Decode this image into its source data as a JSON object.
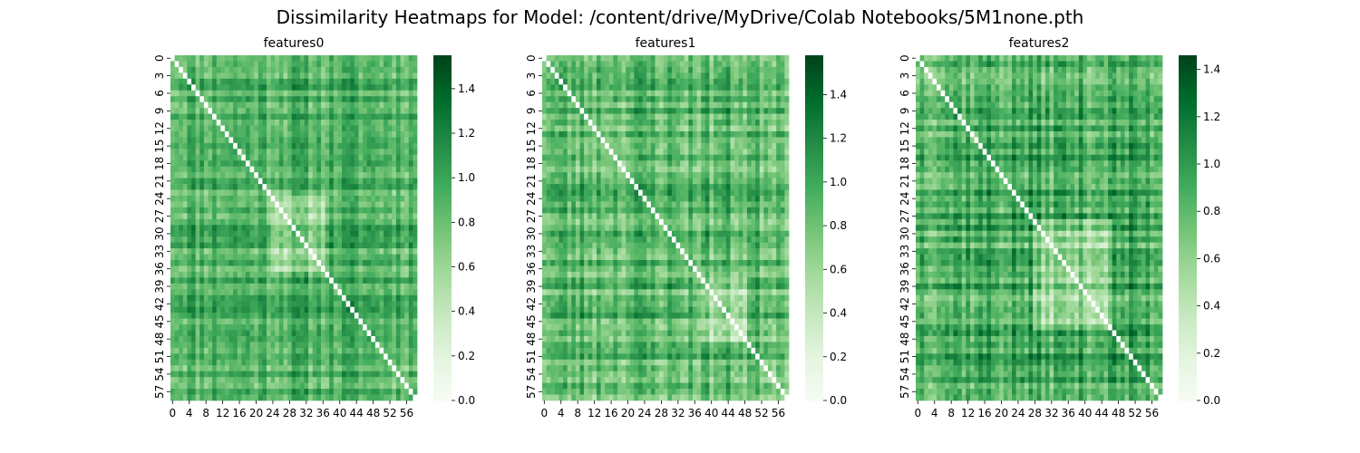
{
  "figure": {
    "suptitle": "Dissimilarity Heatmaps for Model: /content/drive/MyDrive/Colab Notebooks/5M1none.pth"
  },
  "colors": {
    "cmap": [
      "#f7fcf5",
      "#e5f5e0",
      "#c7e9c0",
      "#a1d99b",
      "#74c476",
      "#41ab5d",
      "#238b45",
      "#006d2c",
      "#00441b"
    ],
    "diagonal": "#ffffff",
    "text": "#000000"
  },
  "chart_data": [
    {
      "type": "heatmap",
      "title": "features0",
      "n": 59,
      "x_ticks": [
        "0",
        "4",
        "8",
        "12",
        "16",
        "20",
        "24",
        "28",
        "32",
        "36",
        "40",
        "44",
        "48",
        "52",
        "56"
      ],
      "y_ticks": [
        "0",
        "3",
        "6",
        "9",
        "12",
        "15",
        "18",
        "21",
        "24",
        "27",
        "30",
        "33",
        "36",
        "39",
        "42",
        "45",
        "48",
        "51",
        "54",
        "57"
      ],
      "colorbar": {
        "ticks": [
          "0.0",
          "0.2",
          "0.4",
          "0.6",
          "0.8",
          "1.0",
          "1.2",
          "1.4"
        ],
        "vmin": 0.0,
        "vmax": 1.55
      },
      "mean": 0.95,
      "spread": 0.22,
      "seed": 11,
      "light_block": [
        24,
        36
      ],
      "xlabel": "",
      "ylabel": "",
      "grid": false
    },
    {
      "type": "heatmap",
      "title": "features1",
      "n": 59,
      "x_ticks": [
        "0",
        "4",
        "8",
        "12",
        "16",
        "20",
        "24",
        "28",
        "32",
        "36",
        "40",
        "44",
        "48",
        "52",
        "56"
      ],
      "y_ticks": [
        "0",
        "3",
        "6",
        "9",
        "12",
        "15",
        "18",
        "21",
        "24",
        "27",
        "30",
        "33",
        "36",
        "39",
        "42",
        "45",
        "48",
        "51",
        "54",
        "57"
      ],
      "colorbar": {
        "ticks": [
          "0.0",
          "0.2",
          "0.4",
          "0.6",
          "0.8",
          "1.0",
          "1.2",
          "1.4"
        ],
        "vmin": 0.0,
        "vmax": 1.58
      },
      "mean": 0.9,
      "spread": 0.26,
      "seed": 23,
      "light_block": [
        38,
        48
      ],
      "xlabel": "",
      "ylabel": "",
      "grid": false
    },
    {
      "type": "heatmap",
      "title": "features2",
      "n": 59,
      "x_ticks": [
        "0",
        "4",
        "8",
        "12",
        "16",
        "20",
        "24",
        "28",
        "32",
        "36",
        "40",
        "44",
        "48",
        "52",
        "56"
      ],
      "y_ticks": [
        "0",
        "3",
        "6",
        "9",
        "12",
        "15",
        "18",
        "21",
        "24",
        "27",
        "30",
        "33",
        "36",
        "39",
        "42",
        "45",
        "48",
        "51",
        "54",
        "57"
      ],
      "colorbar": {
        "ticks": [
          "0.0",
          "0.2",
          "0.4",
          "0.6",
          "0.8",
          "1.0",
          "1.2",
          "1.4"
        ],
        "vmin": 0.0,
        "vmax": 1.46
      },
      "mean": 0.92,
      "spread": 0.25,
      "seed": 37,
      "light_block": [
        28,
        46
      ],
      "xlabel": "",
      "ylabel": "",
      "grid": false
    }
  ]
}
